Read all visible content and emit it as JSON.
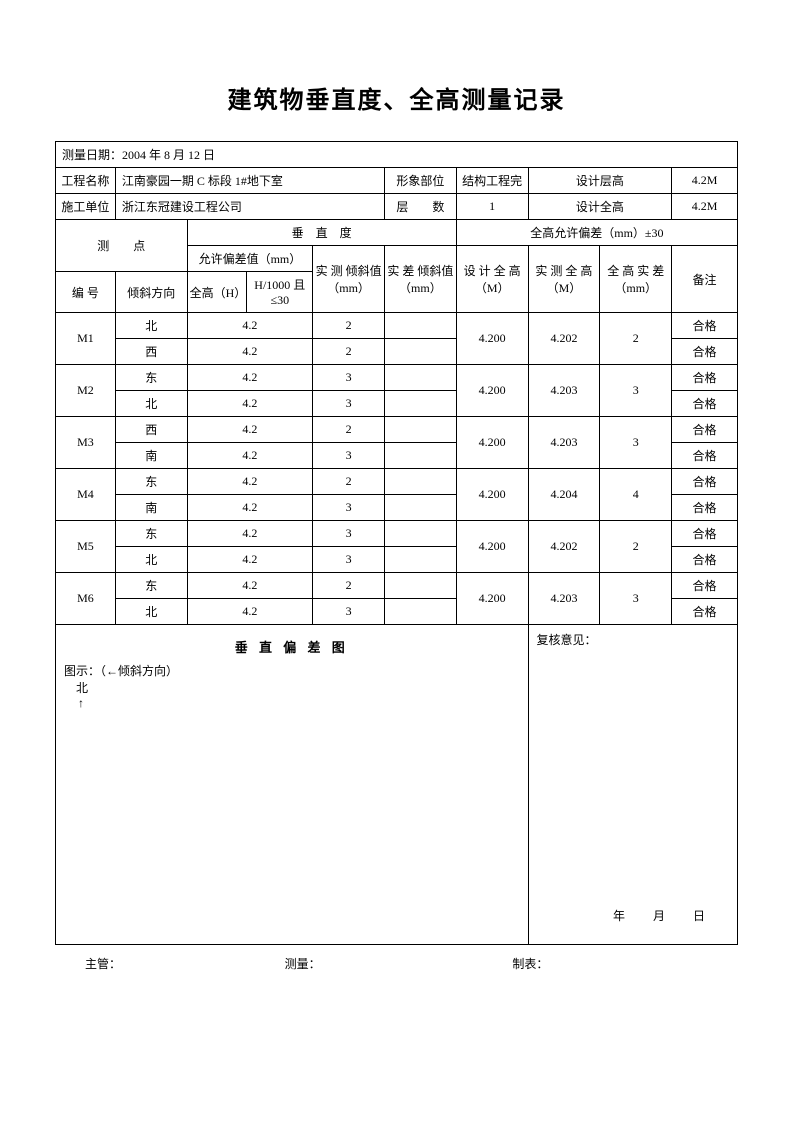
{
  "title": "建筑物垂直度、全高测量记录",
  "header": {
    "date_label": "测量日期：",
    "date_value": "2004 年 8 月 12 日",
    "project_label": "工程名称",
    "project_value": "江南豪园一期 C 标段 1#地下室",
    "image_part_label": "形象部位",
    "image_part_value": "结构工程完",
    "design_floor_h_label": "设计层高",
    "design_floor_h_value": "4.2M",
    "contractor_label": "施工单位",
    "contractor_value": "浙江东冠建设工程公司",
    "floors_label": "层　　数",
    "floors_value": "1",
    "design_total_h_label": "设计全高",
    "design_total_h_value": "4.2M"
  },
  "section_headers": {
    "vertical": "垂　直　度",
    "tolerance": "全高允许偏差（mm）±30",
    "point": "测　　点",
    "allow_dev": "允许偏差值（mm）",
    "meas_tilt": "实 测 倾斜值（mm）",
    "diff_tilt": "实 差 倾斜值（mm）",
    "design_h": "设 计 全 高（M）",
    "meas_h": "实 测 全 高（M）",
    "h_diff": "全 高 实 差（mm）",
    "remark": "备注",
    "col_no": "编 号",
    "col_dir": "倾斜方向",
    "col_full_h": "全高（H）",
    "col_h1000": "H/1000 且≤30"
  },
  "rows": [
    {
      "id": "M1",
      "dir1": "北",
      "allow1": "4.2",
      "tilt1": "2",
      "diff1": "",
      "design": "4.200",
      "meas": "4.202",
      "hdiff": "2",
      "rem1": "合格",
      "dir2": "西",
      "allow2": "4.2",
      "tilt2": "2",
      "diff2": "",
      "rem2": "合格"
    },
    {
      "id": "M2",
      "dir1": "东",
      "allow1": "4.2",
      "tilt1": "3",
      "diff1": "",
      "design": "4.200",
      "meas": "4.203",
      "hdiff": "3",
      "rem1": "合格",
      "dir2": "北",
      "allow2": "4.2",
      "tilt2": "3",
      "diff2": "",
      "rem2": "合格"
    },
    {
      "id": "M3",
      "dir1": "西",
      "allow1": "4.2",
      "tilt1": "2",
      "diff1": "",
      "design": "4.200",
      "meas": "4.203",
      "hdiff": "3",
      "rem1": "合格",
      "dir2": "南",
      "allow2": "4.2",
      "tilt2": "3",
      "diff2": "",
      "rem2": "合格"
    },
    {
      "id": "M4",
      "dir1": "东",
      "allow1": "4.2",
      "tilt1": "2",
      "diff1": "",
      "design": "4.200",
      "meas": "4.204",
      "hdiff": "4",
      "rem1": "合格",
      "dir2": "南",
      "allow2": "4.2",
      "tilt2": "3",
      "diff2": "",
      "rem2": "合格"
    },
    {
      "id": "M5",
      "dir1": "东",
      "allow1": "4.2",
      "tilt1": "3",
      "diff1": "",
      "design": "4.200",
      "meas": "4.202",
      "hdiff": "2",
      "rem1": "合格",
      "dir2": "北",
      "allow2": "4.2",
      "tilt2": "3",
      "diff2": "",
      "rem2": "合格"
    },
    {
      "id": "M6",
      "dir1": "东",
      "allow1": "4.2",
      "tilt1": "2",
      "diff1": "",
      "design": "4.200",
      "meas": "4.203",
      "hdiff": "3",
      "rem1": "合格",
      "dir2": "北",
      "allow2": "4.2",
      "tilt2": "3",
      "diff2": "",
      "rem2": "合格"
    }
  ],
  "diagram": {
    "title": "垂 直 偏 差 图",
    "legend": "图示：（←倾斜方向）",
    "north": "北",
    "arrow": "↑"
  },
  "review": {
    "label": "复核意见：",
    "date": "年　月　日"
  },
  "footer": {
    "supervisor": "主管：",
    "measurer": "测量：",
    "tabulator": "制表："
  }
}
